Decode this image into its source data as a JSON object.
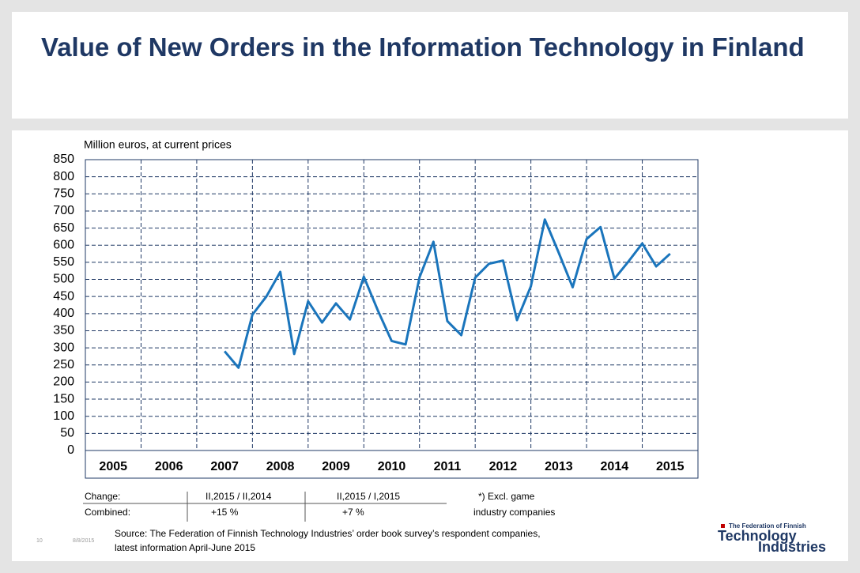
{
  "chart_data": {
    "type": "line",
    "title": "Value of New Orders in the Information Technology in Finland",
    "y_label": "Million euros, at current prices",
    "x": [
      2007.5,
      2007.75,
      2008,
      2008.25,
      2008.5,
      2008.75,
      2009,
      2009.25,
      2009.5,
      2009.75,
      2010,
      2010.25,
      2010.5,
      2010.75,
      2011,
      2011.25,
      2011.5,
      2011.75,
      2012,
      2012.25,
      2012.5,
      2012.75,
      2013,
      2013.25,
      2013.5,
      2013.75,
      2014,
      2014.25,
      2014.5,
      2014.75,
      2015,
      2015.25,
      2015.5
    ],
    "series": [
      {
        "color": "#1a75bc",
        "values": [
          290,
          242,
          397,
          450,
          522,
          282,
          436,
          374,
          430,
          383,
          508,
          410,
          320,
          310,
          506,
          610,
          378,
          337,
          505,
          546,
          555,
          381,
          480,
          675,
          578,
          477,
          618,
          653,
          502,
          552,
          605,
          538,
          575
        ]
      }
    ],
    "xlim": [
      2005,
      2016
    ],
    "xticks": [
      {
        "value": 2005.5,
        "label": "2005"
      },
      {
        "value": 2006.5,
        "label": "2006"
      },
      {
        "value": 2007.5,
        "label": "2007"
      },
      {
        "value": 2008.5,
        "label": "2008"
      },
      {
        "value": 2009.5,
        "label": "2009"
      },
      {
        "value": 2010.5,
        "label": "2010"
      },
      {
        "value": 2011.5,
        "label": "2011"
      },
      {
        "value": 2012.5,
        "label": "2012"
      },
      {
        "value": 2013.5,
        "label": "2013"
      },
      {
        "value": 2014.5,
        "label": "2014"
      },
      {
        "value": 2015.5,
        "label": "2015"
      }
    ],
    "ylim": [
      0,
      850
    ],
    "yticks": [
      0,
      50,
      100,
      150,
      200,
      250,
      300,
      350,
      400,
      450,
      500,
      550,
      600,
      650,
      700,
      750,
      800,
      850
    ],
    "grid": true
  },
  "table": {
    "rows": [
      [
        "Change:",
        "II,2015 / II,2014",
        "II,2015 / I,2015"
      ],
      [
        "Combined:",
        "+15 %",
        "+7 %"
      ]
    ]
  },
  "note": [
    "*) Excl. game",
    "industry companies"
  ],
  "source": [
    "Source: The Federation of Finnish Technology Industries’ order book survey’s respondent companies,",
    "latest information April-June 2015"
  ],
  "footer": {
    "page": "10",
    "date": "8/8/2015"
  },
  "logo": [
    "The Federation of Finnish",
    "Technology",
    "Industries"
  ]
}
